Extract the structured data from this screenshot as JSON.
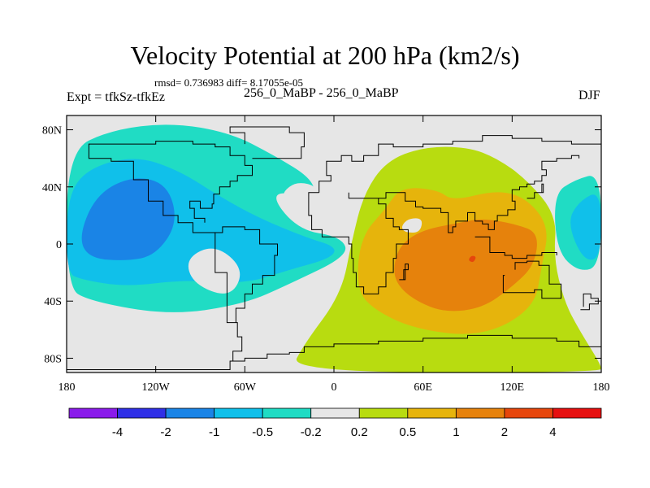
{
  "chart_data": {
    "type": "contour_map",
    "title": "Velocity Potential at 200 hPa (km2/s)",
    "stats": "rmsd= 0.736983  diff= 8.17055e-05",
    "left_label": "Expt = tfkSz-tfkEz",
    "center_label": "256_0_MaBP - 256_0_MaBP",
    "right_label": "DJF",
    "xlim": [
      -180,
      180
    ],
    "ylim": [
      -90,
      90
    ],
    "x_ticks": [
      {
        "value": -180,
        "label": "180"
      },
      {
        "value": -120,
        "label": "120W"
      },
      {
        "value": -60,
        "label": "60W"
      },
      {
        "value": 0,
        "label": "0"
      },
      {
        "value": 60,
        "label": "60E"
      },
      {
        "value": 120,
        "label": "120E"
      },
      {
        "value": 180,
        "label": "180"
      }
    ],
    "y_ticks": [
      {
        "value": 80,
        "label": "80N"
      },
      {
        "value": 40,
        "label": "40N"
      },
      {
        "value": 0,
        "label": "0"
      },
      {
        "value": -40,
        "label": "40S"
      },
      {
        "value": -80,
        "label": "80S"
      }
    ],
    "contour_levels": [
      "-4",
      "-2",
      "-1",
      "-0.5",
      "-0.2",
      "0.2",
      "0.5",
      "1",
      "2",
      "4"
    ],
    "colorbar_colors": [
      "#8a1bea",
      "#2f2fe6",
      "#1a84e6",
      "#10c0ea",
      "#20dcc4",
      "#e6e6e6",
      "#b8dc10",
      "#e6b40c",
      "#e6820c",
      "#e6460c",
      "#e61010"
    ],
    "background_color": "#e6e6e6",
    "regions": [
      {
        "level": "-0.5 to -0.2",
        "color": "#20dcc4",
        "points": [
          [
            -180,
            65
          ],
          [
            -150,
            80
          ],
          [
            -110,
            85
          ],
          [
            -70,
            78
          ],
          [
            -40,
            62
          ],
          [
            -15,
            46
          ],
          [
            -12,
            32
          ],
          [
            -45,
            38
          ],
          [
            -25,
            10
          ],
          [
            5,
            5
          ],
          [
            10,
            -8
          ],
          [
            -30,
            -28
          ],
          [
            -60,
            -42
          ],
          [
            -110,
            -50
          ],
          [
            -165,
            -40
          ],
          [
            -180,
            -30
          ]
        ]
      },
      {
        "level": "-0.5 to -0.2",
        "color": "#20dcc4",
        "points": [
          [
            148,
            35
          ],
          [
            162,
            45
          ],
          [
            180,
            50
          ],
          [
            180,
            -15
          ],
          [
            165,
            -20
          ],
          [
            150,
            -5
          ]
        ]
      },
      {
        "level": "-1 to -0.5",
        "color": "#10c0ea",
        "points": [
          [
            -180,
            30
          ],
          [
            -168,
            52
          ],
          [
            -135,
            62
          ],
          [
            -105,
            52
          ],
          [
            -75,
            32
          ],
          [
            -50,
            18
          ],
          [
            -20,
            5
          ],
          [
            2,
            -2
          ],
          [
            -2,
            -10
          ],
          [
            -30,
            -18
          ],
          [
            -60,
            -28
          ],
          [
            -100,
            -25
          ],
          [
            -140,
            -30
          ],
          [
            -170,
            -25
          ],
          [
            -180,
            -20
          ]
        ]
      },
      {
        "level": "-1 to -0.5",
        "color": "#10c0ea",
        "points": [
          [
            157,
            15
          ],
          [
            165,
            30
          ],
          [
            180,
            38
          ],
          [
            180,
            -10
          ],
          [
            168,
            -12
          ]
        ]
      },
      {
        "level": "-2 to -1",
        "color": "#1a84e6",
        "points": [
          [
            -172,
            5
          ],
          [
            -160,
            35
          ],
          [
            -135,
            48
          ],
          [
            -112,
            42
          ],
          [
            -105,
            15
          ],
          [
            -120,
            -8
          ],
          [
            -140,
            -12
          ],
          [
            -165,
            -10
          ]
        ]
      },
      {
        "level": "-0.2 to 0.2",
        "color": "#e6e6e6",
        "points": [
          [
            -100,
            -10
          ],
          [
            -80,
            0
          ],
          [
            -60,
            -18
          ],
          [
            -70,
            -38
          ],
          [
            -95,
            -28
          ]
        ]
      },
      {
        "level": "-0.2 to 0.2",
        "color": "#e6e6e6",
        "points": [
          [
            -35,
            36
          ],
          [
            -25,
            44
          ],
          [
            -10,
            40
          ],
          [
            -18,
            28
          ],
          [
            -32,
            30
          ]
        ]
      },
      {
        "level": "0.2 to 0.5",
        "color": "#b8dc10",
        "points": [
          [
            -30,
            -90
          ],
          [
            -20,
            -70
          ],
          [
            5,
            -35
          ],
          [
            12,
            2
          ],
          [
            20,
            35
          ],
          [
            35,
            58
          ],
          [
            60,
            68
          ],
          [
            90,
            68
          ],
          [
            110,
            60
          ],
          [
            130,
            45
          ],
          [
            150,
            20
          ],
          [
            148,
            -10
          ],
          [
            155,
            -40
          ],
          [
            165,
            -60
          ],
          [
            180,
            -85
          ],
          [
            180,
            -90
          ]
        ]
      },
      {
        "level": "0.5 to 1",
        "color": "#e6b40c",
        "points": [
          [
            15,
            -30
          ],
          [
            18,
            5
          ],
          [
            35,
            25
          ],
          [
            45,
            40
          ],
          [
            70,
            38
          ],
          [
            80,
            30
          ],
          [
            110,
            38
          ],
          [
            130,
            32
          ],
          [
            145,
            12
          ],
          [
            140,
            -15
          ],
          [
            135,
            -45
          ],
          [
            100,
            -65
          ],
          [
            55,
            -60
          ],
          [
            25,
            -45
          ]
        ]
      },
      {
        "level": "-0.2 to 0.2",
        "color": "#e6e6e6",
        "points": [
          [
            45,
            12
          ],
          [
            50,
            18
          ],
          [
            60,
            18
          ],
          [
            58,
            8
          ],
          [
            48,
            8
          ]
        ]
      },
      {
        "level": "1 to 2",
        "color": "#e6820c",
        "points": [
          [
            40,
            -15
          ],
          [
            45,
            0
          ],
          [
            60,
            10
          ],
          [
            85,
            15
          ],
          [
            100,
            18
          ],
          [
            122,
            14
          ],
          [
            138,
            8
          ],
          [
            135,
            -15
          ],
          [
            120,
            -30
          ],
          [
            100,
            -45
          ],
          [
            75,
            -48
          ],
          [
            55,
            -40
          ],
          [
            42,
            -28
          ]
        ]
      },
      {
        "level": "2 to 4",
        "color": "#e6460c",
        "points": [
          [
            91,
            -10
          ],
          [
            93,
            -8
          ],
          [
            96,
            -9
          ],
          [
            94,
            -13
          ],
          [
            91,
            -12
          ]
        ]
      }
    ],
    "coastlines": [
      [
        [
          -180,
          -88
        ],
        [
          -80,
          -88
        ],
        [
          -70,
          -82
        ],
        [
          -60,
          -80
        ],
        [
          -45,
          -77
        ],
        [
          -30,
          -76
        ],
        [
          -20,
          -72
        ],
        [
          0,
          -70
        ],
        [
          30,
          -68
        ],
        [
          60,
          -66
        ],
        [
          90,
          -64
        ],
        [
          120,
          -66
        ],
        [
          150,
          -68
        ],
        [
          165,
          -72
        ],
        [
          180,
          -78
        ]
      ],
      [
        [
          -60,
          -82
        ],
        [
          -68,
          -75
        ],
        [
          -62,
          -65
        ],
        [
          -65,
          -55
        ],
        [
          -72,
          -40
        ],
        [
          -72,
          -20
        ],
        [
          -80,
          -5
        ],
        [
          -80,
          8
        ],
        [
          -75,
          12
        ],
        [
          -60,
          10
        ],
        [
          -50,
          0
        ],
        [
          -38,
          -8
        ],
        [
          -40,
          -22
        ],
        [
          -48,
          -28
        ],
        [
          -55,
          -35
        ],
        [
          -60,
          -45
        ],
        [
          -66,
          -55
        ]
      ],
      [
        [
          -80,
          8
        ],
        [
          -95,
          15
        ],
        [
          -105,
          20
        ],
        [
          -115,
          30
        ],
        [
          -125,
          45
        ],
        [
          -135,
          58
        ],
        [
          -150,
          60
        ],
        [
          -165,
          62
        ],
        [
          -165,
          70
        ],
        [
          -140,
          70
        ],
        [
          -120,
          72
        ],
        [
          -95,
          70
        ],
        [
          -80,
          68
        ],
        [
          -70,
          62
        ],
        [
          -60,
          55
        ],
        [
          -55,
          48
        ],
        [
          -65,
          44
        ],
        [
          -70,
          40
        ],
        [
          -77,
          35
        ],
        [
          -81,
          28
        ],
        [
          -82,
          25
        ],
        [
          -90,
          30
        ],
        [
          -97,
          25
        ],
        [
          -94,
          18
        ],
        [
          -87,
          15
        ]
      ],
      [
        [
          -55,
          60
        ],
        [
          -45,
          60
        ],
        [
          -22,
          68
        ],
        [
          -20,
          78
        ],
        [
          -30,
          82
        ],
        [
          -50,
          82
        ],
        [
          -70,
          78
        ],
        [
          -60,
          70
        ]
      ],
      [
        [
          -10,
          36
        ],
        [
          -17,
          20
        ],
        [
          -15,
          10
        ],
        [
          -8,
          5
        ],
        [
          5,
          5
        ],
        [
          10,
          0
        ],
        [
          12,
          -10
        ],
        [
          13,
          -20
        ],
        [
          15,
          -30
        ],
        [
          20,
          -35
        ],
        [
          30,
          -30
        ],
        [
          35,
          -20
        ],
        [
          40,
          -10
        ],
        [
          42,
          0
        ],
        [
          50,
          10
        ],
        [
          44,
          12
        ],
        [
          40,
          18
        ],
        [
          35,
          28
        ],
        [
          30,
          32
        ],
        [
          20,
          32
        ],
        [
          10,
          36
        ]
      ],
      [
        [
          -10,
          36
        ],
        [
          -10,
          44
        ],
        [
          -2,
          48
        ],
        [
          -5,
          58
        ],
        [
          5,
          62
        ],
        [
          12,
          58
        ],
        [
          20,
          62
        ],
        [
          30,
          70
        ],
        [
          40,
          68
        ],
        [
          60,
          70
        ],
        [
          80,
          72
        ],
        [
          100,
          76
        ],
        [
          120,
          74
        ],
        [
          140,
          72
        ],
        [
          160,
          70
        ],
        [
          180,
          68
        ]
      ],
      [
        [
          30,
          32
        ],
        [
          35,
          36
        ],
        [
          48,
          30
        ],
        [
          55,
          26
        ],
        [
          60,
          25
        ],
        [
          66,
          25
        ],
        [
          72,
          22
        ],
        [
          77,
          8
        ],
        [
          80,
          12
        ],
        [
          82,
          16
        ],
        [
          90,
          22
        ],
        [
          95,
          16
        ],
        [
          100,
          14
        ],
        [
          104,
          10
        ],
        [
          108,
          16
        ],
        [
          110,
          20
        ],
        [
          117,
          24
        ],
        [
          122,
          30
        ],
        [
          120,
          38
        ],
        [
          125,
          40
        ],
        [
          130,
          42
        ],
        [
          135,
          44
        ],
        [
          140,
          48
        ],
        [
          143,
          52
        ],
        [
          140,
          58
        ],
        [
          150,
          60
        ],
        [
          160,
          62
        ],
        [
          165,
          60
        ]
      ],
      [
        [
          95,
          5
        ],
        [
          105,
          -6
        ],
        [
          115,
          -8
        ],
        [
          120,
          -10
        ],
        [
          130,
          -8
        ],
        [
          140,
          -6
        ],
        [
          150,
          -8
        ]
      ],
      [
        [
          115,
          -22
        ],
        [
          114,
          -34
        ],
        [
          125,
          -34
        ],
        [
          135,
          -32
        ],
        [
          140,
          -38
        ],
        [
          150,
          -38
        ],
        [
          153,
          -28
        ],
        [
          145,
          -15
        ],
        [
          138,
          -12
        ],
        [
          130,
          -13
        ],
        [
          122,
          -18
        ]
      ],
      [
        [
          166,
          -46
        ],
        [
          172,
          -42
        ],
        [
          178,
          -38
        ],
        [
          173,
          -35
        ],
        [
          168,
          -44
        ]
      ],
      [
        [
          130,
          32
        ],
        [
          135,
          36
        ],
        [
          141,
          42
        ],
        [
          140,
          36
        ]
      ],
      [
        [
          44,
          -25
        ],
        [
          48,
          -14
        ],
        [
          50,
          -18
        ],
        [
          47,
          -25
        ]
      ]
    ]
  }
}
